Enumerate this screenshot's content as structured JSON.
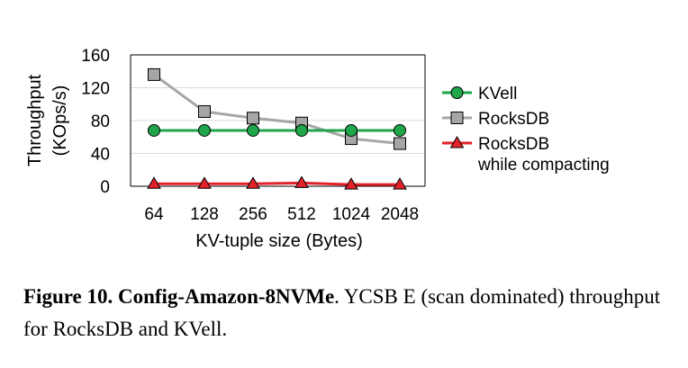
{
  "chart_data": {
    "type": "line",
    "categories": [
      "64",
      "128",
      "256",
      "512",
      "1024",
      "2048"
    ],
    "series": [
      {
        "name": "KVell",
        "values": [
          68,
          68,
          68,
          68,
          68,
          68
        ],
        "color": "#1fa64a",
        "marker": "circle"
      },
      {
        "name": "RocksDB",
        "values": [
          136,
          91,
          83,
          77,
          58,
          52
        ],
        "color": "#a6a6a6",
        "marker": "square"
      },
      {
        "name": "RocksDB while compacting",
        "name_lines": [
          "RocksDB",
          "while compacting"
        ],
        "values": [
          3,
          3,
          3,
          4,
          2,
          2
        ],
        "color": "#e3212a",
        "marker": "triangle"
      }
    ],
    "xlabel": "KV-tuple size (Bytes)",
    "ylabel": "Throughput (KOps/s)",
    "ylabel_lines": [
      "Throughput",
      "(KOps/s)"
    ],
    "ylim": [
      0,
      160
    ],
    "yticks": [
      "0",
      "40",
      "80",
      "120",
      "160"
    ],
    "grid": true,
    "legend_position": "right"
  },
  "caption": {
    "label": "Figure 10. Config-Amazon-8NVMe",
    "text": ". YCSB E (scan dominated) throughput for RocksDB and KVell."
  }
}
